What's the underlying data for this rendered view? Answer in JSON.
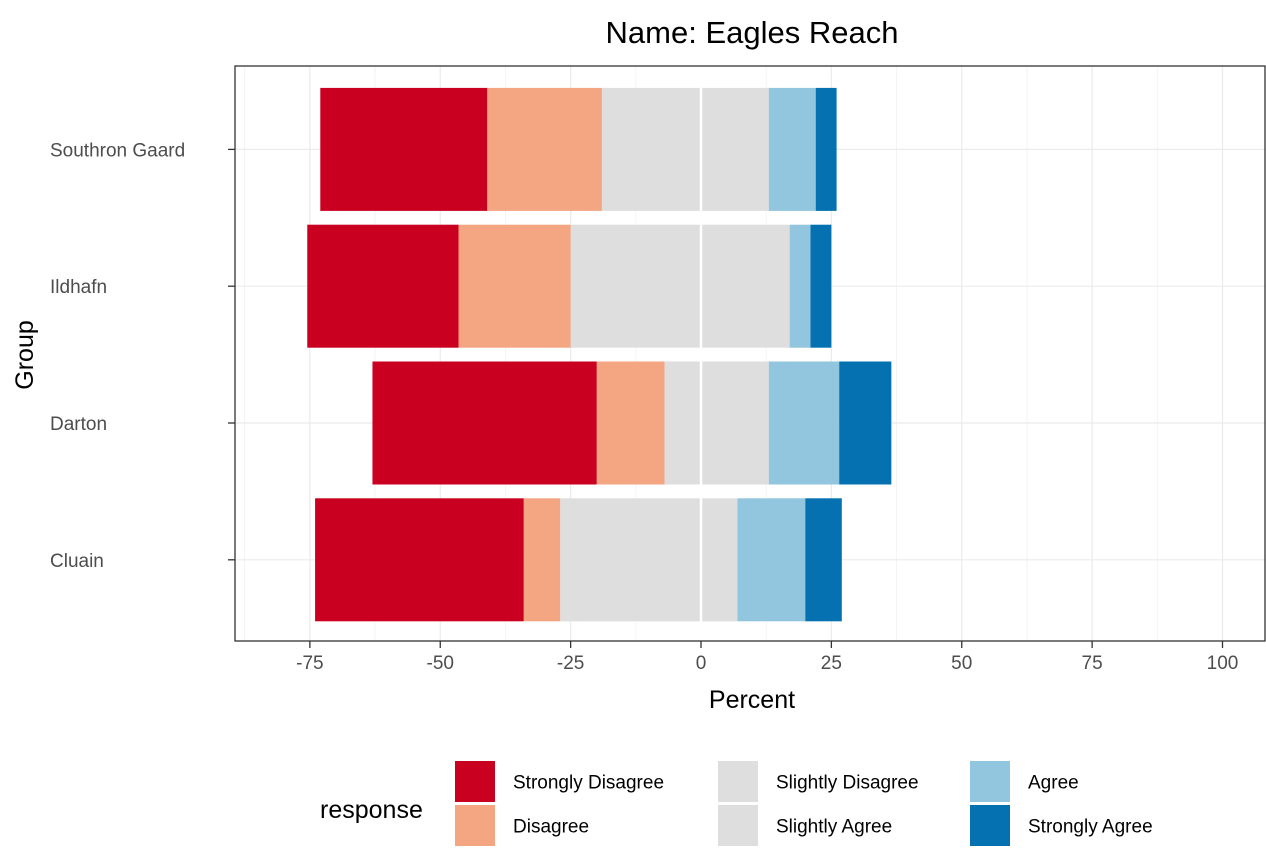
{
  "chart_data": {
    "type": "bar",
    "orientation": "horizontal",
    "stacked": "diverging",
    "title": "Name: Eagles Reach",
    "xlabel": "Percent",
    "ylabel": "Group",
    "xlim": [
      -90,
      105
    ],
    "xticks": [
      -75,
      -50,
      -25,
      0,
      25,
      50,
      75,
      100
    ],
    "xtick_labels": [
      "-75",
      "-50",
      "-25",
      "0",
      "25",
      "50",
      "75",
      "100"
    ],
    "grid": true,
    "categories": [
      "Southron Gaard",
      "Ildhafn",
      "Darton",
      "Cluain"
    ],
    "legend": {
      "title": "response",
      "placement": "bottom"
    },
    "series": [
      {
        "name": "Strongly Disagree",
        "color": "#ca0020",
        "values": [
          32,
          29,
          43,
          40
        ]
      },
      {
        "name": "Disagree",
        "color": "#f4a582",
        "values": [
          22,
          21.5,
          13,
          7
        ]
      },
      {
        "name": "Slightly Disagree",
        "color": "#dedede",
        "values": [
          19,
          25,
          7,
          27
        ]
      },
      {
        "name": "Slightly Agree",
        "color": "#dedede",
        "values": [
          13,
          17,
          13,
          7
        ]
      },
      {
        "name": "Agree",
        "color": "#92c5de",
        "values": [
          9,
          4,
          13.5,
          13
        ]
      },
      {
        "name": "Strongly Agree",
        "color": "#0571b0",
        "values": [
          4,
          4,
          10,
          7
        ]
      }
    ]
  }
}
